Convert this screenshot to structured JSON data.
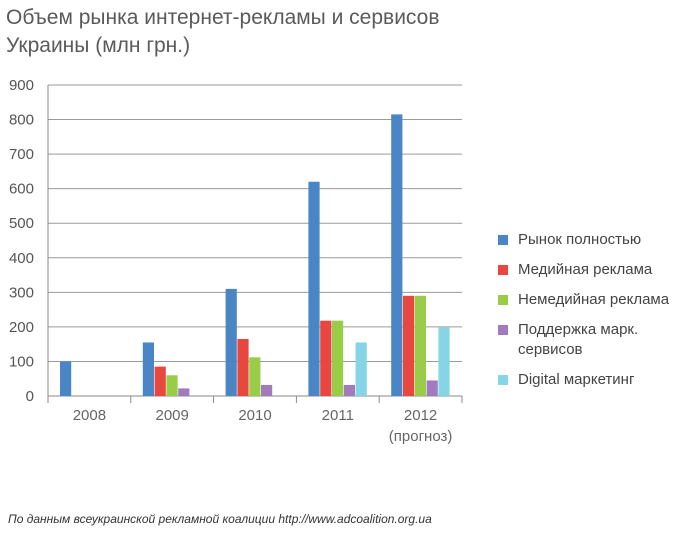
{
  "title_line1": "Объем рынка интернет-рекламы и сервисов",
  "title_line2": "Украины (млн грн.)",
  "source_note": "По данным всеукраинской рекламной коалиции http://www.adcoalition.org.ua",
  "chart_data": {
    "type": "bar",
    "title": "Объем рынка интернет-рекламы и сервисов Украины (млн грн.)",
    "categories": [
      "2008",
      "2009",
      "2010",
      "2011",
      "2012"
    ],
    "category_sublabels": [
      "",
      "",
      "",
      "",
      "(прогноз)"
    ],
    "ylim": [
      0,
      900
    ],
    "yticks": [
      0,
      100,
      200,
      300,
      400,
      500,
      600,
      700,
      800,
      900
    ],
    "grid": true,
    "legend_position": "right",
    "series": [
      {
        "name": "Рынок полностью",
        "color": "#4a86c5",
        "values": [
          100,
          155,
          310,
          620,
          815
        ]
      },
      {
        "name": "Медийная реклама",
        "color": "#e8473f",
        "values": [
          null,
          85,
          165,
          218,
          290
        ]
      },
      {
        "name": "Немедийная реклама",
        "color": "#9acd47",
        "values": [
          null,
          60,
          112,
          218,
          290
        ]
      },
      {
        "name": "Поддержка марк. сервисов",
        "color": "#a27bbf",
        "values": [
          null,
          22,
          32,
          32,
          45
        ]
      },
      {
        "name": "Digital маркетинг",
        "color": "#86d5e6",
        "values": [
          null,
          null,
          null,
          155,
          198
        ]
      }
    ]
  }
}
